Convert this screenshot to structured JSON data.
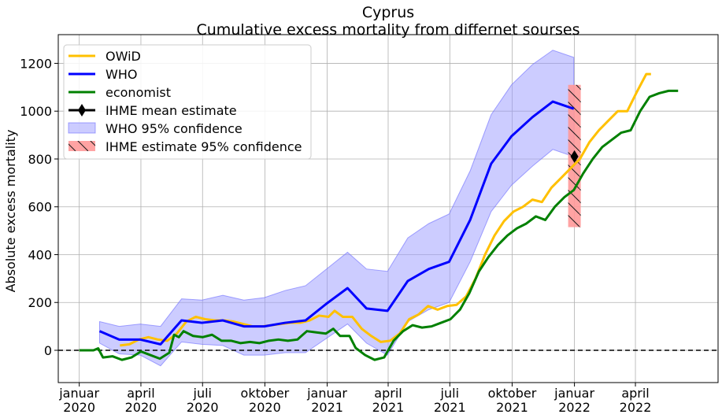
{
  "chart_data": {
    "type": "line",
    "title": "Cyprus",
    "subtitle": "Cumulative excess mortality from differnet sourses",
    "xlabel": "",
    "ylabel": "Absolute excess mortality",
    "ylim": [
      -135,
      1320
    ],
    "xlim": [
      "2019-12-01",
      "2022-08-01"
    ],
    "grid": true,
    "legend_position": "top-left",
    "y_ticks": [
      0,
      200,
      400,
      600,
      800,
      1000,
      1200
    ],
    "x_ticks": [
      {
        "date": "2020-01-01",
        "label": [
          "januar",
          "2020"
        ]
      },
      {
        "date": "2020-04-01",
        "label": [
          "april",
          "2020"
        ]
      },
      {
        "date": "2020-07-01",
        "label": [
          "juli",
          "2020"
        ]
      },
      {
        "date": "2020-10-01",
        "label": [
          "oktober",
          "2020"
        ]
      },
      {
        "date": "2021-01-01",
        "label": [
          "januar",
          "2021"
        ]
      },
      {
        "date": "2021-04-01",
        "label": [
          "april",
          "2021"
        ]
      },
      {
        "date": "2021-07-01",
        "label": [
          "juli",
          "2021"
        ]
      },
      {
        "date": "2021-10-01",
        "label": [
          "oktober",
          "2021"
        ]
      },
      {
        "date": "2022-01-01",
        "label": [
          "januar",
          "2022"
        ]
      },
      {
        "date": "2022-04-01",
        "label": [
          "april",
          "2022"
        ]
      }
    ],
    "colors": {
      "owid": "#ffc000",
      "who": "#0000ff",
      "economist": "#008000",
      "ihme": "#000000",
      "who_band": "#9999ff",
      "ihme_band": "#ff6666"
    },
    "series": [
      {
        "name": "OWiD",
        "kind": "line",
        "points": [
          [
            "2020-03-01",
            20
          ],
          [
            "2020-03-15",
            25
          ],
          [
            "2020-03-29",
            45
          ],
          [
            "2020-04-12",
            55
          ],
          [
            "2020-04-26",
            45
          ],
          [
            "2020-05-10",
            40
          ],
          [
            "2020-05-24",
            70
          ],
          [
            "2020-06-07",
            120
          ],
          [
            "2020-06-21",
            140
          ],
          [
            "2020-07-05",
            130
          ],
          [
            "2020-07-19",
            125
          ],
          [
            "2020-08-02",
            125
          ],
          [
            "2020-08-16",
            120
          ],
          [
            "2020-08-30",
            110
          ],
          [
            "2020-09-13",
            100
          ],
          [
            "2020-09-27",
            100
          ],
          [
            "2020-10-11",
            105
          ],
          [
            "2020-10-25",
            110
          ],
          [
            "2020-11-08",
            115
          ],
          [
            "2020-11-22",
            115
          ],
          [
            "2020-12-06",
            125
          ],
          [
            "2020-12-20",
            145
          ],
          [
            "2021-01-03",
            140
          ],
          [
            "2021-01-12",
            165
          ],
          [
            "2021-01-24",
            140
          ],
          [
            "2021-02-07",
            140
          ],
          [
            "2021-02-21",
            90
          ],
          [
            "2021-03-07",
            60
          ],
          [
            "2021-03-21",
            35
          ],
          [
            "2021-04-04",
            40
          ],
          [
            "2021-04-18",
            70
          ],
          [
            "2021-05-02",
            130
          ],
          [
            "2021-05-16",
            150
          ],
          [
            "2021-05-30",
            185
          ],
          [
            "2021-06-13",
            170
          ],
          [
            "2021-06-27",
            185
          ],
          [
            "2021-07-11",
            190
          ],
          [
            "2021-07-25",
            225
          ],
          [
            "2021-08-08",
            300
          ],
          [
            "2021-08-22",
            400
          ],
          [
            "2021-09-05",
            480
          ],
          [
            "2021-09-19",
            540
          ],
          [
            "2021-10-03",
            580
          ],
          [
            "2021-10-17",
            600
          ],
          [
            "2021-10-31",
            630
          ],
          [
            "2021-11-14",
            620
          ],
          [
            "2021-11-28",
            680
          ],
          [
            "2021-12-12",
            720
          ],
          [
            "2021-12-26",
            760
          ],
          [
            "2022-01-09",
            800
          ],
          [
            "2022-01-23",
            870
          ],
          [
            "2022-02-06",
            920
          ],
          [
            "2022-02-20",
            960
          ],
          [
            "2022-03-06",
            1000
          ],
          [
            "2022-03-20",
            1000
          ],
          [
            "2022-04-03",
            1080
          ],
          [
            "2022-04-17",
            1155
          ],
          [
            "2022-04-24",
            1155
          ]
        ]
      },
      {
        "name": "WHO",
        "kind": "line",
        "points": [
          [
            "2020-01-31",
            80
          ],
          [
            "2020-02-29",
            45
          ],
          [
            "2020-03-31",
            45
          ],
          [
            "2020-04-30",
            25
          ],
          [
            "2020-05-31",
            125
          ],
          [
            "2020-06-30",
            115
          ],
          [
            "2020-07-31",
            125
          ],
          [
            "2020-08-31",
            100
          ],
          [
            "2020-09-30",
            100
          ],
          [
            "2020-10-31",
            115
          ],
          [
            "2020-11-30",
            125
          ],
          [
            "2020-12-31",
            195
          ],
          [
            "2021-01-31",
            260
          ],
          [
            "2021-02-28",
            175
          ],
          [
            "2021-03-31",
            165
          ],
          [
            "2021-04-30",
            290
          ],
          [
            "2021-05-31",
            340
          ],
          [
            "2021-06-30",
            370
          ],
          [
            "2021-07-31",
            545
          ],
          [
            "2021-08-31",
            780
          ],
          [
            "2021-09-30",
            895
          ],
          [
            "2021-10-31",
            975
          ],
          [
            "2021-11-30",
            1040
          ],
          [
            "2021-12-31",
            1010
          ]
        ]
      },
      {
        "name": "economist",
        "kind": "line",
        "points": [
          [
            "2020-01-01",
            0
          ],
          [
            "2020-01-22",
            0
          ],
          [
            "2020-01-29",
            8
          ],
          [
            "2020-02-05",
            -30
          ],
          [
            "2020-02-19",
            -25
          ],
          [
            "2020-03-04",
            -40
          ],
          [
            "2020-03-18",
            -30
          ],
          [
            "2020-04-01",
            -5
          ],
          [
            "2020-04-15",
            -20
          ],
          [
            "2020-04-29",
            -35
          ],
          [
            "2020-05-13",
            -10
          ],
          [
            "2020-05-20",
            65
          ],
          [
            "2020-05-27",
            55
          ],
          [
            "2020-06-03",
            80
          ],
          [
            "2020-06-17",
            60
          ],
          [
            "2020-07-01",
            55
          ],
          [
            "2020-07-15",
            65
          ],
          [
            "2020-07-29",
            40
          ],
          [
            "2020-08-12",
            40
          ],
          [
            "2020-08-26",
            30
          ],
          [
            "2020-09-09",
            35
          ],
          [
            "2020-09-23",
            30
          ],
          [
            "2020-10-07",
            40
          ],
          [
            "2020-10-21",
            45
          ],
          [
            "2020-11-04",
            40
          ],
          [
            "2020-11-18",
            45
          ],
          [
            "2020-12-02",
            80
          ],
          [
            "2020-12-16",
            75
          ],
          [
            "2020-12-30",
            70
          ],
          [
            "2021-01-10",
            90
          ],
          [
            "2021-01-20",
            60
          ],
          [
            "2021-02-03",
            60
          ],
          [
            "2021-02-12",
            10
          ],
          [
            "2021-02-26",
            -20
          ],
          [
            "2021-03-12",
            -40
          ],
          [
            "2021-03-26",
            -30
          ],
          [
            "2021-04-09",
            40
          ],
          [
            "2021-04-23",
            80
          ],
          [
            "2021-05-07",
            105
          ],
          [
            "2021-05-21",
            95
          ],
          [
            "2021-06-04",
            100
          ],
          [
            "2021-06-18",
            115
          ],
          [
            "2021-07-02",
            130
          ],
          [
            "2021-07-16",
            170
          ],
          [
            "2021-07-30",
            240
          ],
          [
            "2021-08-13",
            330
          ],
          [
            "2021-08-27",
            390
          ],
          [
            "2021-09-10",
            440
          ],
          [
            "2021-09-24",
            480
          ],
          [
            "2021-10-08",
            510
          ],
          [
            "2021-10-22",
            530
          ],
          [
            "2021-11-05",
            560
          ],
          [
            "2021-11-19",
            545
          ],
          [
            "2021-12-03",
            600
          ],
          [
            "2021-12-17",
            640
          ],
          [
            "2021-12-31",
            670
          ],
          [
            "2022-01-14",
            740
          ],
          [
            "2022-01-28",
            800
          ],
          [
            "2022-02-11",
            850
          ],
          [
            "2022-02-25",
            880
          ],
          [
            "2022-03-11",
            910
          ],
          [
            "2022-03-25",
            920
          ],
          [
            "2022-04-08",
            1000
          ],
          [
            "2022-04-22",
            1060
          ],
          [
            "2022-05-06",
            1075
          ],
          [
            "2022-05-20",
            1085
          ],
          [
            "2022-06-03",
            1085
          ]
        ]
      },
      {
        "name": "IHME mean estimate",
        "kind": "marker",
        "points": [
          [
            "2022-01-01",
            810
          ]
        ]
      }
    ],
    "bands": [
      {
        "name": "WHO 95% confidence",
        "points": [
          [
            "2020-01-31",
            120,
            30
          ],
          [
            "2020-02-29",
            100,
            -15
          ],
          [
            "2020-03-31",
            110,
            -20
          ],
          [
            "2020-04-30",
            100,
            -65
          ],
          [
            "2020-05-31",
            215,
            35
          ],
          [
            "2020-06-30",
            210,
            25
          ],
          [
            "2020-07-31",
            230,
            20
          ],
          [
            "2020-08-31",
            210,
            -20
          ],
          [
            "2020-09-30",
            220,
            -20
          ],
          [
            "2020-10-31",
            250,
            -10
          ],
          [
            "2020-11-30",
            270,
            -10
          ],
          [
            "2020-12-31",
            340,
            50
          ],
          [
            "2021-01-31",
            410,
            110
          ],
          [
            "2021-02-28",
            340,
            30
          ],
          [
            "2021-03-31",
            330,
            -20
          ],
          [
            "2021-04-30",
            470,
            120
          ],
          [
            "2021-05-31",
            530,
            170
          ],
          [
            "2021-06-30",
            570,
            200
          ],
          [
            "2021-07-31",
            750,
            370
          ],
          [
            "2021-08-31",
            985,
            580
          ],
          [
            "2021-09-30",
            1110,
            690
          ],
          [
            "2021-10-31",
            1195,
            770
          ],
          [
            "2021-11-30",
            1255,
            840
          ],
          [
            "2021-12-31",
            1225,
            810
          ]
        ]
      },
      {
        "name": " IHME estimate 95% confidence",
        "date": "2022-01-01",
        "upper": 1110,
        "lower": 515
      }
    ]
  }
}
